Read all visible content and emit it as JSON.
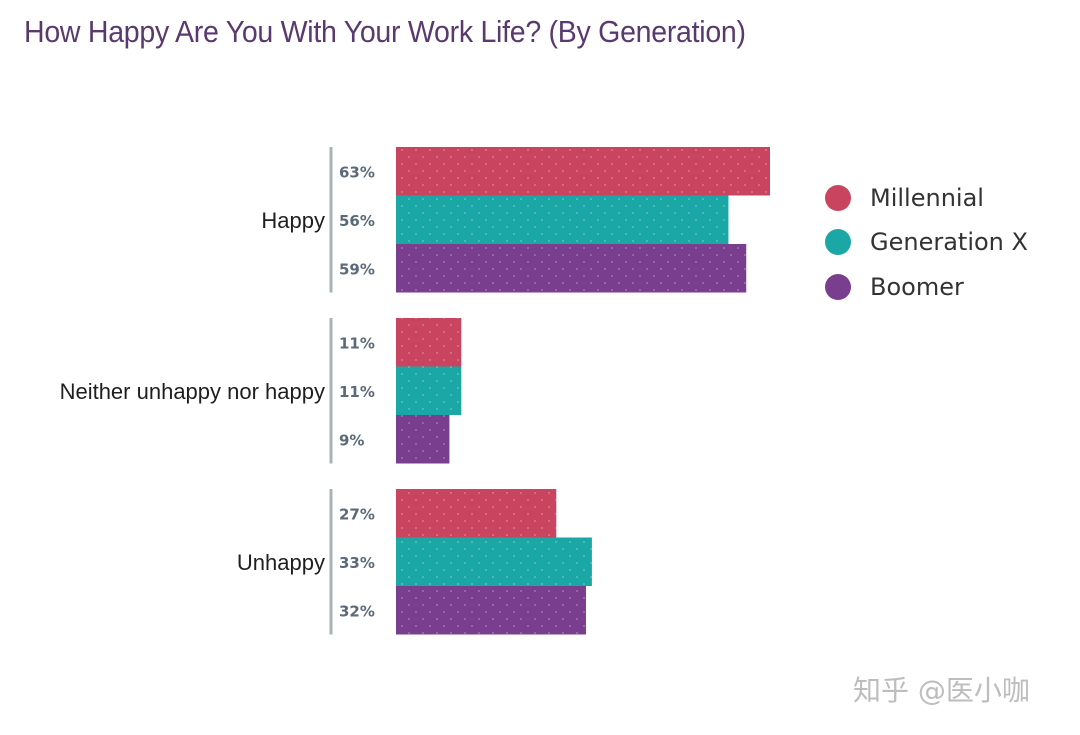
{
  "chart_data": {
    "type": "bar",
    "orientation": "horizontal",
    "title": "How Happy Are You With Your Work Life? (By Generation)",
    "categories": [
      "Happy",
      "Neither unhappy nor happy",
      "Unhappy"
    ],
    "series": [
      {
        "name": "Millennial",
        "color": "#c9445f",
        "values": [
          63,
          11,
          27
        ],
        "labels": [
          "63%",
          "11%",
          "27%"
        ]
      },
      {
        "name": "Generation X",
        "color": "#1aa7a6",
        "values": [
          56,
          11,
          33
        ],
        "labels": [
          "56%",
          "11%",
          "33%"
        ]
      },
      {
        "name": "Boomer",
        "color": "#7a3e8e",
        "values": [
          59,
          9,
          32
        ],
        "labels": [
          "59%",
          "9%",
          "32%"
        ]
      }
    ],
    "xlim": [
      0,
      63
    ],
    "legend_position": "right",
    "grid": false
  },
  "watermark": "知乎 @医小咖"
}
